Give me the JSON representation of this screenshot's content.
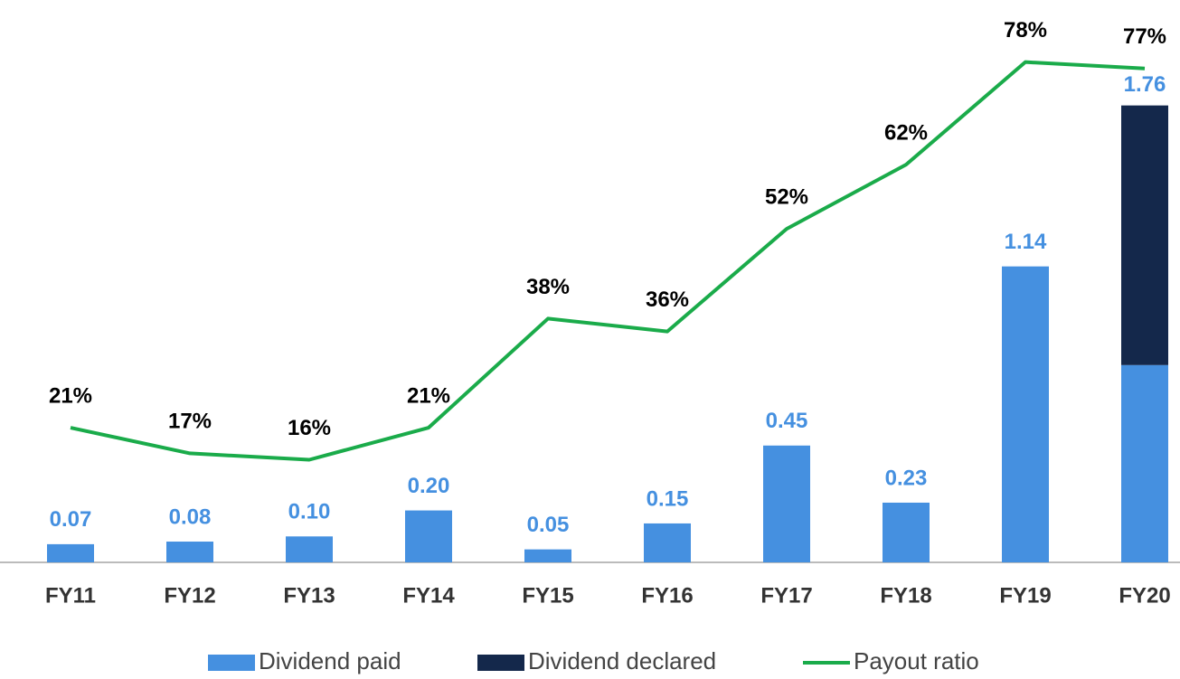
{
  "chart_data": {
    "type": "bar",
    "categories": [
      "FY11",
      "FY12",
      "FY13",
      "FY14",
      "FY15",
      "FY16",
      "FY17",
      "FY18",
      "FY19",
      "FY20"
    ],
    "series": [
      {
        "name": "Dividend paid",
        "type": "bar",
        "color": "#4590e0",
        "label_color": "#4590e0",
        "values": [
          0.07,
          0.08,
          0.1,
          0.2,
          0.05,
          0.15,
          0.45,
          0.23,
          1.14,
          0.76
        ],
        "value_labels": [
          "0.07",
          "0.08",
          "0.10",
          "0.20",
          "0.05",
          "0.15",
          "0.45",
          "0.23",
          "1.14",
          null
        ]
      },
      {
        "name": "Dividend declared",
        "type": "bar",
        "color": "#14284b",
        "values": [
          null,
          null,
          null,
          null,
          null,
          null,
          null,
          null,
          null,
          1.0
        ]
      },
      {
        "name": "Payout ratio",
        "type": "line",
        "axis": "y2",
        "color": "#1aab4a",
        "values": [
          21,
          17,
          16,
          21,
          38,
          36,
          52,
          62,
          78,
          77
        ],
        "value_labels": [
          "21%",
          "17%",
          "16%",
          "21%",
          "38%",
          "36%",
          "52%",
          "62%",
          "78%",
          "77%"
        ]
      }
    ],
    "totals": [
      null,
      null,
      null,
      null,
      null,
      null,
      null,
      null,
      null,
      1.76
    ],
    "total_labels": [
      null,
      null,
      null,
      null,
      null,
      null,
      null,
      null,
      null,
      "1.76"
    ],
    "stacked": true,
    "ylim": [
      0,
      2.1
    ],
    "y2lim": [
      0,
      85
    ]
  }
}
